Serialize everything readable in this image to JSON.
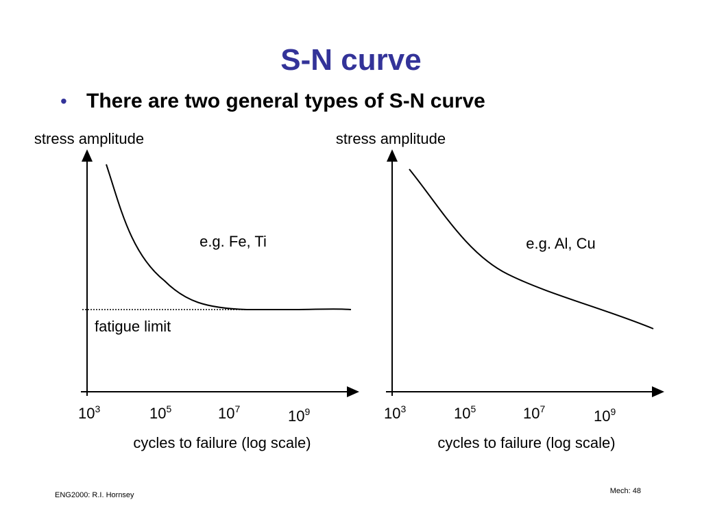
{
  "title": "S-N curve",
  "bullet": "There are two general types of S-N curve",
  "charts": [
    {
      "y_label": "stress amplitude",
      "x_label": "cycles to failure (log scale)",
      "annotation": "e.g. Fe, Ti",
      "limit_label": "fatigue limit",
      "ticks": [
        {
          "base": "10",
          "exp": "3"
        },
        {
          "base": "10",
          "exp": "5"
        },
        {
          "base": "10",
          "exp": "7"
        },
        {
          "base": "10",
          "exp": "9"
        }
      ]
    },
    {
      "y_label": "stress amplitude",
      "x_label": "cycles to failure (log scale)",
      "annotation": "e.g. Al, Cu",
      "ticks": [
        {
          "base": "10",
          "exp": "3"
        },
        {
          "base": "10",
          "exp": "5"
        },
        {
          "base": "10",
          "exp": "7"
        },
        {
          "base": "10",
          "exp": "9"
        }
      ]
    }
  ],
  "footer": {
    "left": "ENG2000: R.I. Hornsey",
    "right": "Mech: 48"
  }
}
